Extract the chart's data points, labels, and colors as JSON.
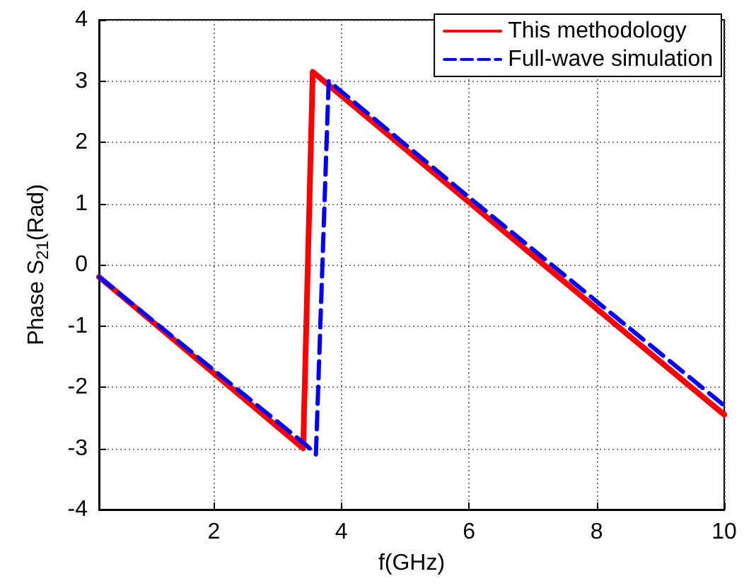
{
  "chart_data": {
    "type": "line",
    "xlabel": "f(GHz)",
    "ylabel": "Phase S$_{21}$(Rad)",
    "xlim": [
      0.2,
      10
    ],
    "xticks": [
      2,
      4,
      6,
      8,
      10
    ],
    "ylim": [
      -4,
      4
    ],
    "yticks": [
      -4,
      -3,
      -2,
      -1,
      0,
      1,
      2,
      3,
      4
    ],
    "grid": true,
    "legend": "top right",
    "marker": "none",
    "series": [
      {
        "name": "This methodology",
        "color": "#ff0000",
        "line_style": "solid",
        "x": [
          0.2,
          3.4,
          3.55,
          6,
          8,
          10
        ],
        "values": [
          -0.2,
          -3.0,
          3.15,
          1.02,
          -0.72,
          -2.45
        ]
      },
      {
        "name": "Full-wave simulation",
        "color": "#0000ff",
        "line_style": "dashed",
        "x": [
          0.2,
          3.45,
          3.6,
          3.8,
          6,
          8,
          10
        ],
        "values": [
          -0.2,
          -2.95,
          -3.1,
          3.0,
          1.1,
          -0.6,
          -2.3
        ]
      }
    ]
  }
}
